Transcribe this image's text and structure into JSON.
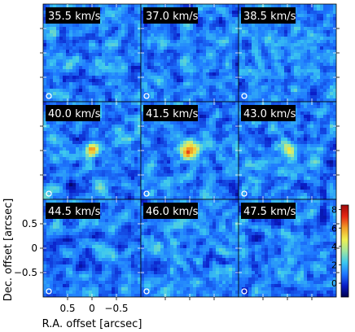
{
  "chart_data": {
    "type": "heatmap",
    "title": "",
    "grid": {
      "rows": 3,
      "cols": 3
    },
    "panels": [
      {
        "label": "35.5 km/s",
        "velocity": 35.5,
        "peak": 0.0
      },
      {
        "label": "37.0 km/s",
        "velocity": 37.0,
        "peak": 0.0
      },
      {
        "label": "38.5 km/s",
        "velocity": 38.5,
        "peak": 0.0
      },
      {
        "label": "40.0 km/s",
        "velocity": 40.0,
        "peak": 3.5
      },
      {
        "label": "41.5 km/s",
        "velocity": 41.5,
        "peak": 6.5
      },
      {
        "label": "43.0 km/s",
        "velocity": 43.0,
        "peak": 3.5
      },
      {
        "label": "44.5 km/s",
        "velocity": 44.5,
        "peak": 0.0
      },
      {
        "label": "46.0 km/s",
        "velocity": 46.0,
        "peak": 0.0
      },
      {
        "label": "47.5 km/s",
        "velocity": 47.5,
        "peak": 0.0
      }
    ],
    "source_offset_arcsec": {
      "ra": 0.0,
      "dec": 0.0
    },
    "xlabel": "R.A. offset [arcsec]",
    "ylabel": "Dec. offset [arcsec]",
    "x_ticks": [
      "0.5",
      "0",
      "−0.5"
    ],
    "x_tick_values": [
      0.5,
      0,
      -0.5
    ],
    "y_ticks": [
      "0.5",
      "0",
      "−0.5"
    ],
    "y_tick_values": [
      0.5,
      0,
      -0.5
    ],
    "xlim": [
      1.0,
      -1.0
    ],
    "ylim": [
      -1.0,
      1.0
    ],
    "colorbar": {
      "ticks": [
        "0",
        "2",
        "4",
        "6",
        "8"
      ],
      "tick_values": [
        0,
        2,
        4,
        6,
        8
      ],
      "range": [
        -1.5,
        8.5
      ],
      "colormap": [
        "#000050",
        "#0a1ec8",
        "#1e78ff",
        "#3cc8f0",
        "#a0e6a0",
        "#f0f050",
        "#f0a028",
        "#e62814",
        "#a00a0a"
      ]
    },
    "beam_marker": "circle"
  }
}
